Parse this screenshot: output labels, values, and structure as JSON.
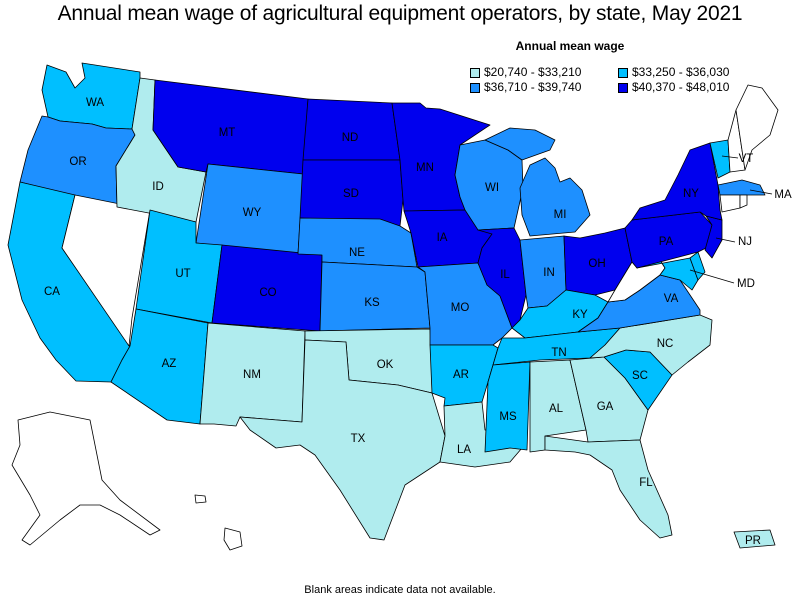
{
  "title": "Annual mean wage of agricultural equipment operators, by state, May 2021",
  "legend": {
    "title": "Annual mean wage",
    "items": [
      {
        "label": "$20,740 - $33,210",
        "color": "#b0ecee"
      },
      {
        "label": "$33,250 - $36,030",
        "color": "#00bfff"
      },
      {
        "label": "$36,710 - $39,740",
        "color": "#1e90ff"
      },
      {
        "label": "$40,370 - $48,010",
        "color": "#0000ee"
      }
    ]
  },
  "footnote": "Blank areas indicate data not available.",
  "colors": {
    "tier1": "#b0ecee",
    "tier2": "#00bfff",
    "tier3": "#1e90ff",
    "tier4": "#0000ee",
    "no_data": "#ffffff"
  },
  "states": {
    "WA": "tier2",
    "OR": "tier3",
    "CA": "tier2",
    "NV": "no_data",
    "ID": "tier1",
    "MT": "tier4",
    "WY": "tier3",
    "UT": "tier2",
    "AZ": "tier2",
    "CO": "tier4",
    "NM": "tier1",
    "ND": "tier4",
    "SD": "tier4",
    "NE": "tier3",
    "KS": "tier3",
    "OK": "tier1",
    "TX": "tier1",
    "MN": "tier4",
    "IA": "tier4",
    "MO": "tier3",
    "AR": "tier2",
    "LA": "tier1",
    "WI": "tier3",
    "IL": "tier4",
    "MI": "tier3",
    "IN": "tier3",
    "OH": "tier4",
    "KY": "tier2",
    "TN": "tier2",
    "MS": "tier2",
    "AL": "tier1",
    "GA": "tier1",
    "FL": "tier1",
    "SC": "tier2",
    "NC": "tier1",
    "VA": "tier3",
    "WV": "no_data",
    "MD": "tier2",
    "DE": "tier2",
    "NJ": "tier4",
    "PA": "tier4",
    "NY": "tier4",
    "VT": "tier2",
    "NH": "no_data",
    "ME": "no_data",
    "MA": "tier3",
    "CT": "no_data",
    "RI": "no_data",
    "AK": "no_data",
    "HI": "no_data",
    "PR": "tier1"
  },
  "labels": [
    "WA",
    "OR",
    "CA",
    "ID",
    "MT",
    "WY",
    "UT",
    "AZ",
    "CO",
    "NM",
    "ND",
    "SD",
    "NE",
    "KS",
    "OK",
    "TX",
    "MN",
    "IA",
    "MO",
    "AR",
    "LA",
    "WI",
    "IL",
    "MI",
    "IN",
    "OH",
    "KY",
    "TN",
    "MS",
    "AL",
    "GA",
    "FL",
    "SC",
    "NC",
    "VA",
    "MD",
    "NJ",
    "PA",
    "NY",
    "VT",
    "MA",
    "PR"
  ]
}
